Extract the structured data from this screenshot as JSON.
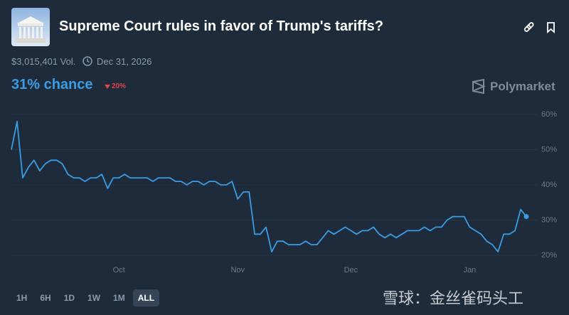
{
  "header": {
    "title": "Supreme Court rules in favor of Trump's tariffs?",
    "volume": "$3,015,401 Vol.",
    "end_date": "Dec 31, 2026",
    "chance": "31% chance",
    "change": "20%",
    "brand": "Polymarket"
  },
  "chart_data": {
    "type": "line",
    "color": "#3b9be3",
    "categories": [
      null,
      null,
      null,
      null,
      null,
      null,
      null,
      null,
      null,
      null,
      null,
      null,
      null,
      null,
      null,
      null,
      null,
      null,
      null,
      "Oct",
      null,
      null,
      null,
      null,
      null,
      null,
      null,
      null,
      null,
      null,
      null,
      null,
      null,
      null,
      null,
      null,
      null,
      null,
      null,
      null,
      "Nov",
      null,
      null,
      null,
      null,
      null,
      null,
      null,
      null,
      null,
      null,
      null,
      null,
      null,
      null,
      null,
      null,
      null,
      null,
      null,
      "Dec",
      null,
      null,
      null,
      null,
      null,
      null,
      null,
      null,
      null,
      null,
      null,
      null,
      null,
      null,
      null,
      null,
      null,
      null,
      null,
      null,
      "Jan",
      null,
      null,
      null,
      null,
      null,
      null,
      null,
      null,
      null,
      null
    ],
    "values": [
      50,
      58,
      42,
      45,
      47,
      44,
      46,
      47,
      47,
      46,
      43,
      42,
      42,
      41,
      42,
      42,
      43,
      39,
      42,
      42,
      43,
      42,
      42,
      42,
      42,
      41,
      42,
      42,
      42,
      41,
      41,
      40,
      41,
      41,
      40,
      41,
      41,
      40,
      40,
      41,
      36,
      38,
      38,
      26,
      26,
      28,
      21,
      24,
      24,
      23,
      23,
      23,
      24,
      23,
      23,
      25,
      27,
      26,
      27,
      28,
      27,
      26,
      27,
      27,
      28,
      26,
      25,
      26,
      25,
      26,
      27,
      27,
      27,
      28,
      27,
      28,
      28,
      30,
      31,
      31,
      31,
      28,
      27,
      26,
      24,
      23,
      21,
      26,
      26,
      27,
      33,
      31
    ],
    "ylim": [
      20,
      60
    ],
    "yticks": [
      {
        "value": 20,
        "label": "20%"
      },
      {
        "value": 30,
        "label": "30%"
      },
      {
        "value": 40,
        "label": "40%"
      },
      {
        "value": 50,
        "label": "50%"
      },
      {
        "value": 60,
        "label": "60%"
      }
    ],
    "grid": true
  },
  "controls": {
    "ranges": [
      "1H",
      "6H",
      "1D",
      "1W",
      "1M",
      "ALL"
    ],
    "active": 5
  },
  "watermark": "雪球：金丝雀码头工"
}
